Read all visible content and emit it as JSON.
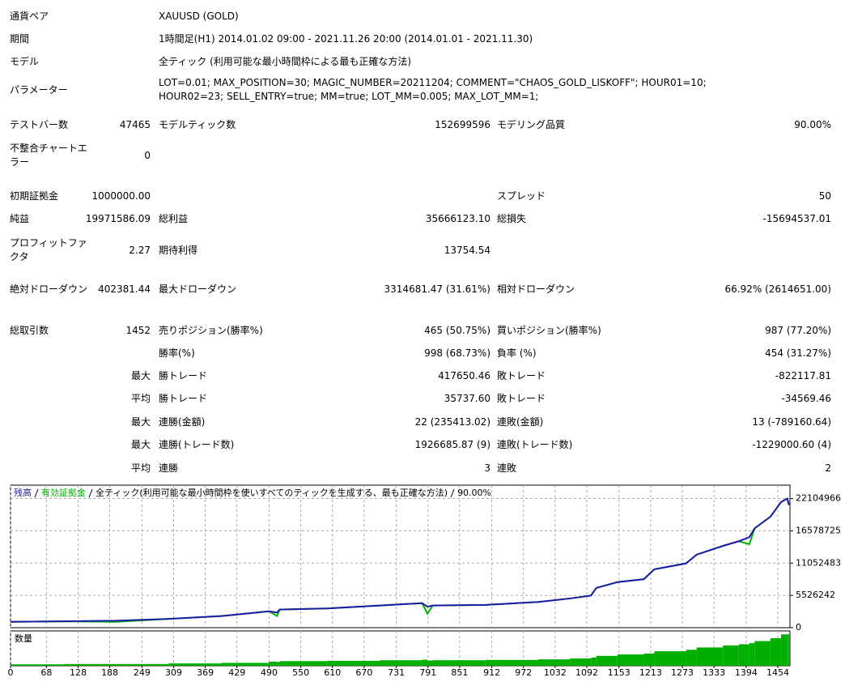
{
  "report": {
    "rows": [
      {
        "label": "通貨ペア",
        "value": "XAUUSD (GOLD)"
      },
      {
        "label": "期間",
        "value": "1時間足(H1) 2014.01.02 09:00 - 2021.11.26 20:00 (2014.01.01 - 2021.11.30)"
      },
      {
        "label": "モデル",
        "value": "全ティック (利用可能な最小時間枠による最も正確な方法)"
      },
      {
        "label": "パラメーター",
        "value": "LOT=0.01; MAX_POSITION=30; MAGIC_NUMBER=20211204; COMMENT=\"CHAOS_GOLD_LISKOFF\"; HOUR01=10; HOUR02=23; SELL_ENTRY=true; MM=true; LOT_MM=0.005; MAX_LOT_MM=1;"
      },
      {
        "label": "テストバー数",
        "value": "47465",
        "label2": "モデルティック数",
        "value2": "152699596",
        "label3": "モデリング品質",
        "value3": "90.00%"
      },
      {
        "label": "不整合チャートエラー",
        "value": "0"
      },
      {
        "label": "初期証拠金",
        "value": "1000000.00",
        "label3": "スプレッド",
        "value3": "50"
      },
      {
        "label": "純益",
        "value": "19971586.09",
        "label2": "総利益",
        "value2": "35666123.10",
        "label3": "総損失",
        "value3": "-15694537.01"
      },
      {
        "label": "プロフィットファクタ",
        "value": "2.27",
        "label2": "期待利得",
        "value2": "13754.54"
      },
      {
        "label": "絶対ドローダウン",
        "value": "402381.44",
        "label2": "最大ドローダウン",
        "value2": "3314681.47 (31.61%)",
        "label3": "相対ドローダウン",
        "value3": "66.92% (2614651.00)"
      },
      {
        "label": "総取引数",
        "value": "1452",
        "label2": "売りポジション(勝率%)",
        "value2": "465 (50.75%)",
        "label3": "買いポジション(勝率%)",
        "value3": "987 (77.20%)"
      },
      {
        "label2": "勝率(%)",
        "value2": "998 (68.73%)",
        "label3": "負率 (%)",
        "value3": "454 (31.27%)"
      },
      {
        "value": "最大",
        "label2": "勝トレード",
        "value2": "417650.46",
        "label3": "敗トレード",
        "value3": "-822117.81"
      },
      {
        "value": "平均",
        "label2": "勝トレード",
        "value2": "35737.60",
        "label3": "敗トレード",
        "value3": "-34569.46"
      },
      {
        "value": "最大",
        "label2": "連勝(金額)",
        "value2": "22 (235413.02)",
        "label3": "連敗(金額)",
        "value3": "13 (-789160.64)"
      },
      {
        "value": "最大",
        "label2": "連勝(トレード数)",
        "value2": "1926685.87 (9)",
        "label3": "連敗(トレード数)",
        "value3": "-1229000.60 (4)"
      },
      {
        "value": "平均",
        "label2": "連勝",
        "value2": "3",
        "label3": "連敗",
        "value3": "2"
      }
    ]
  },
  "chart_data": {
    "type": "line",
    "subtitle": "全ティック(利用可能な最小時間枠を使いすべてのティックを生成する、最も正確な方法)",
    "quality": "90.00%",
    "volume_label": "数量",
    "x": [
      0,
      100,
      200,
      300,
      400,
      490,
      505,
      510,
      600,
      700,
      780,
      790,
      800,
      900,
      1000,
      1060,
      1100,
      1110,
      1150,
      1200,
      1220,
      1280,
      1300,
      1350,
      1380,
      1400,
      1410,
      1440,
      1460,
      1472,
      1475
    ],
    "series": [
      {
        "name": "有効証拠金",
        "color": "#00b000",
        "values": [
          1000000,
          1100000,
          1000000,
          1500000,
          2000000,
          2800000,
          2000000,
          3100000,
          3300000,
          3800000,
          4200000,
          2400000,
          3800000,
          3900000,
          4400000,
          5000000,
          5500000,
          6800000,
          7800000,
          8300000,
          10000000,
          11000000,
          12500000,
          14000000,
          14800000,
          14300000,
          17000000,
          19000000,
          21500000,
          22100000,
          21000000
        ]
      },
      {
        "name": "残高",
        "color": "#1c1ca8",
        "values": [
          1000000,
          1100000,
          1200000,
          1500000,
          2000000,
          2800000,
          2600000,
          3100000,
          3300000,
          3800000,
          4200000,
          3600000,
          3800000,
          3900000,
          4400000,
          5000000,
          5500000,
          6800000,
          7800000,
          8300000,
          10000000,
          11000000,
          12500000,
          14000000,
          14800000,
          15500000,
          17000000,
          19000000,
          21500000,
          22100000,
          21000000
        ]
      }
    ],
    "lots": {
      "color": "#00b000",
      "values": [
        0.05,
        0.06,
        0.06,
        0.08,
        0.1,
        0.14,
        0.13,
        0.16,
        0.17,
        0.19,
        0.21,
        0.18,
        0.19,
        0.2,
        0.22,
        0.25,
        0.28,
        0.34,
        0.39,
        0.42,
        0.5,
        0.55,
        0.63,
        0.7,
        0.74,
        0.78,
        0.85,
        0.95,
        1.08,
        1.1,
        1.05
      ],
      "ylim": [
        0,
        1.2
      ]
    },
    "xlim": [
      0,
      1477
    ],
    "xticks": [
      0,
      68,
      128,
      188,
      249,
      309,
      369,
      429,
      490,
      550,
      610,
      670,
      731,
      791,
      851,
      912,
      972,
      1032,
      1092,
      1153,
      1213,
      1273,
      1333,
      1394,
      1454
    ],
    "ylim": [
      0,
      24400000
    ],
    "yticks": [
      0,
      5526242,
      11052483,
      16578725,
      22104966
    ],
    "grid": true
  }
}
